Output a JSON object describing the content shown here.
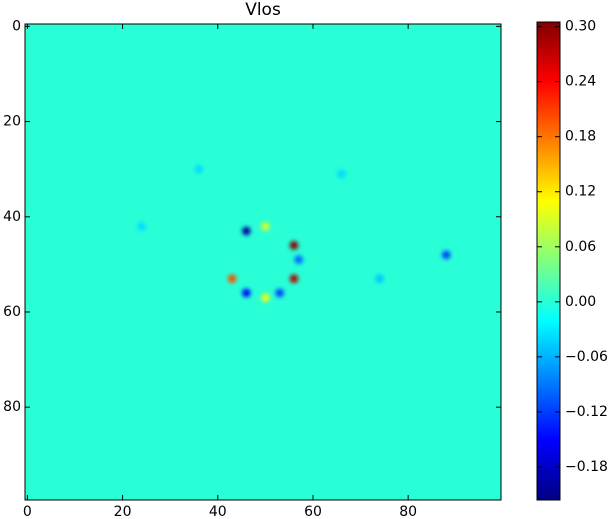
{
  "chart_data": {
    "type": "heatmap",
    "title": "Vlos",
    "background_value": 0,
    "x": [
      46,
      56,
      43,
      46,
      56,
      50,
      53,
      50,
      88,
      57,
      74,
      24,
      36,
      66
    ],
    "y": [
      43,
      46,
      53,
      56,
      53,
      57,
      56,
      42,
      48,
      49,
      53,
      42,
      30,
      31
    ],
    "values": [
      -0.2,
      0.3,
      0.2,
      -0.15,
      0.28,
      0.1,
      -0.12,
      0.09,
      -0.12,
      -0.1,
      -0.05,
      -0.04,
      -0.04,
      -0.04
    ],
    "xlim": [
      -0.5,
      99.5
    ],
    "ylim": [
      99.5,
      -0.5
    ],
    "xticks": [
      0,
      20,
      40,
      60,
      80
    ],
    "yticks": [
      0,
      20,
      40,
      60,
      80
    ],
    "colormap": "jet",
    "clim": [
      -0.216,
      0.305
    ],
    "cticks": [
      {
        "value": 0.3,
        "label": "0.30"
      },
      {
        "value": 0.24,
        "label": "0.24"
      },
      {
        "value": 0.18,
        "label": "0.18"
      },
      {
        "value": 0.12,
        "label": "0.12"
      },
      {
        "value": 0.06,
        "label": "0.06"
      },
      {
        "value": 0,
        "label": "0.00"
      },
      {
        "value": -0.06,
        "label": "−0.06"
      },
      {
        "value": -0.12,
        "label": "−0.12"
      },
      {
        "value": -0.18,
        "label": "−0.18"
      }
    ]
  }
}
